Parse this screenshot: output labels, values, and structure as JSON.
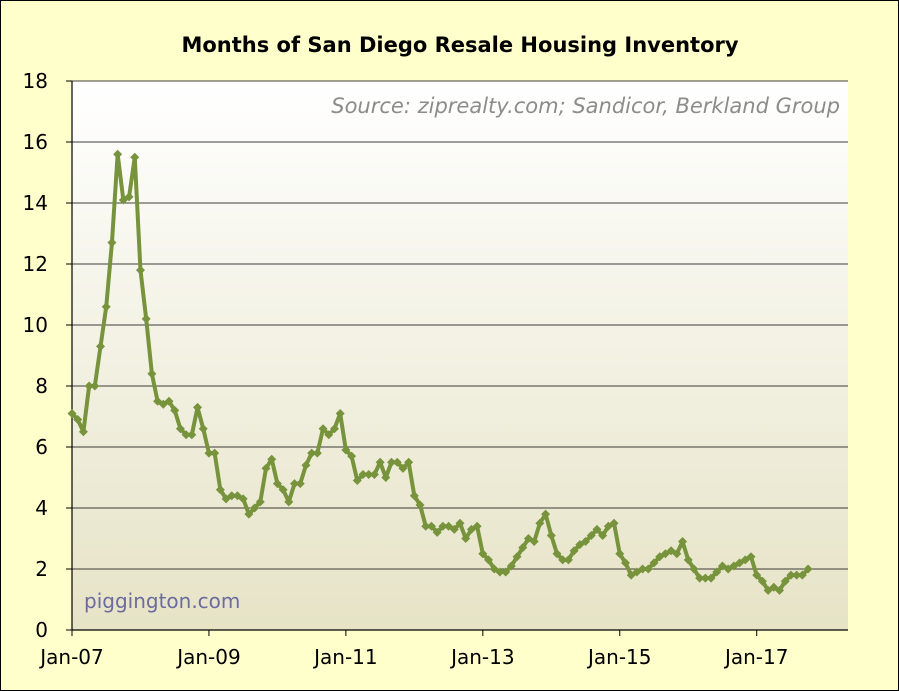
{
  "chart_data": {
    "type": "line",
    "title": "Months of San Diego Resale Housing Inventory",
    "source_note": "Source: ziprealty.com; Sandicor, Berkland Group",
    "credit": "piggington.com",
    "xlabel": "",
    "ylabel": "",
    "ylim": [
      0,
      18
    ],
    "y_ticks": [
      "0",
      "2",
      "4",
      "6",
      "8",
      "10",
      "12",
      "14",
      "16",
      "18"
    ],
    "x_tick_labels": [
      "Jan-07",
      "Jan-09",
      "Jan-11",
      "Jan-13",
      "Jan-15",
      "Jan-17"
    ],
    "x_start": "Jan-07",
    "grid": true,
    "legend": "none",
    "colors": {
      "line": "#77933c",
      "grid": "#000000",
      "plot_top": "#ffffff",
      "plot_bottom": "#e6e3c6",
      "background": "#ffffcc"
    },
    "series": [
      {
        "values": [
          7.1,
          6.9,
          6.5,
          8.0,
          8.0,
          9.3,
          10.6,
          12.7,
          15.6,
          14.1,
          14.2,
          15.5,
          11.8,
          10.2,
          8.4,
          7.5,
          7.4,
          7.5,
          7.2,
          6.6,
          6.4,
          6.4,
          7.3,
          6.6,
          5.8,
          5.8,
          4.6,
          4.3,
          4.4,
          4.4,
          4.3,
          3.8,
          4.0,
          4.2,
          5.3,
          5.6,
          4.8,
          4.6,
          4.2,
          4.8,
          4.8,
          5.4,
          5.8,
          5.8,
          6.6,
          6.4,
          6.6,
          7.1,
          5.9,
          5.7,
          4.9,
          5.1,
          5.1,
          5.1,
          5.5,
          5.0,
          5.5,
          5.5,
          5.3,
          5.5,
          4.4,
          4.1,
          3.4,
          3.4,
          3.2,
          3.4,
          3.4,
          3.3,
          3.5,
          3.0,
          3.3,
          3.4,
          2.5,
          2.3,
          2.0,
          1.9,
          1.9,
          2.1,
          2.4,
          2.7,
          3.0,
          2.9,
          3.5,
          3.8,
          3.1,
          2.5,
          2.3,
          2.3,
          2.6,
          2.8,
          2.9,
          3.1,
          3.3,
          3.1,
          3.4,
          3.5,
          2.5,
          2.2,
          1.8,
          1.9,
          2.0,
          2.0,
          2.2,
          2.4,
          2.5,
          2.6,
          2.5,
          2.9,
          2.3,
          2.0,
          1.7,
          1.7,
          1.7,
          1.9,
          2.1,
          2.0,
          2.1,
          2.2,
          2.3,
          2.4,
          1.8,
          1.6,
          1.3,
          1.4,
          1.3,
          1.6,
          1.8,
          1.8,
          1.8,
          2.0
        ]
      }
    ]
  }
}
